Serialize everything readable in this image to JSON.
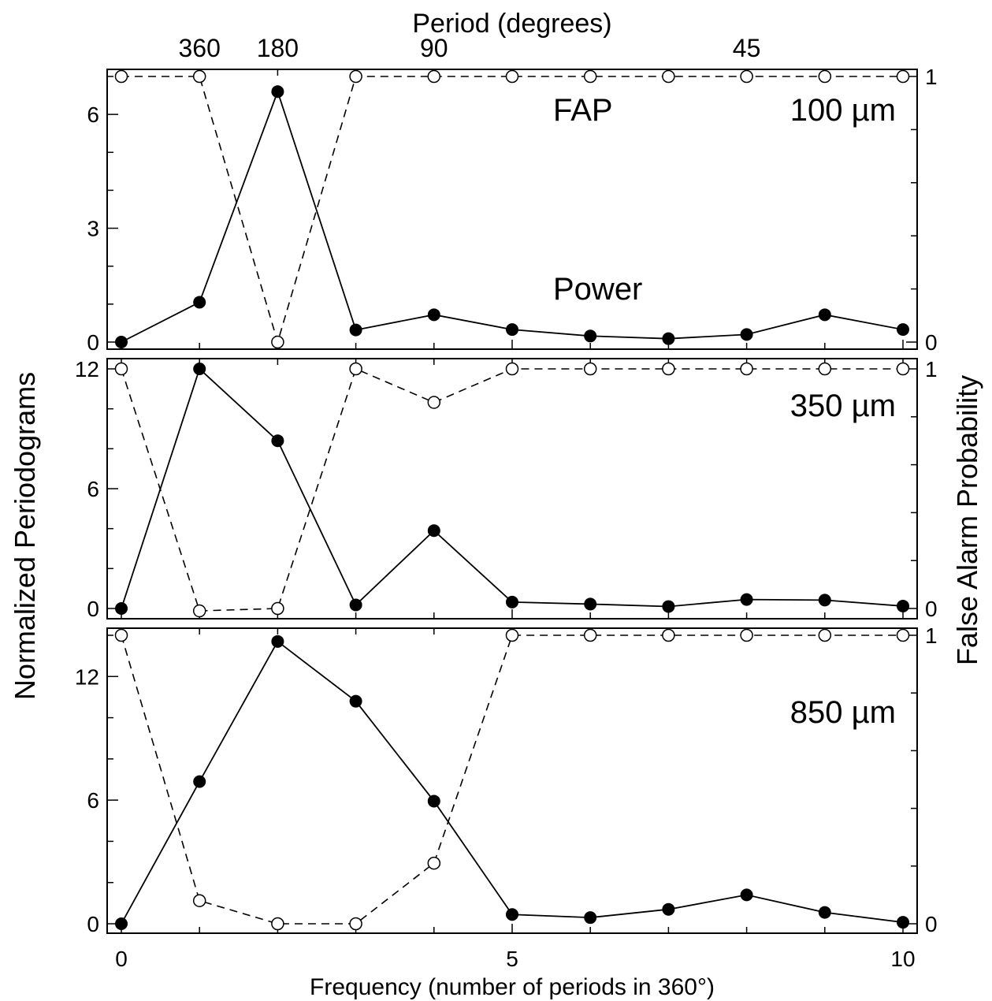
{
  "chart_data": {
    "type": "line",
    "xlabel": "Frequency (number of periods in 360°)",
    "x2label": "Period (degrees)",
    "ylabel": "Normalized Periodograms",
    "y2label": "False Alarm Probability",
    "xlim": [
      0,
      10
    ],
    "xticks": [
      "0",
      "5",
      "10"
    ],
    "top_axis_ticks": [
      {
        "x": 1,
        "label": "360"
      },
      {
        "x": 2,
        "label": "180"
      },
      {
        "x": 4,
        "label": "90"
      },
      {
        "x": 8,
        "label": "45"
      }
    ],
    "annotations": {
      "fap": "FAP",
      "power": "Power"
    },
    "x": [
      0,
      1,
      2,
      3,
      4,
      5,
      6,
      7,
      8,
      9,
      10
    ],
    "panels": [
      {
        "label": "100 µm",
        "ylim": [
          0,
          7
        ],
        "yticks": [
          "0",
          "3",
          "6"
        ],
        "ytick_values": [
          0,
          3,
          6
        ],
        "y2lim": [
          0,
          1
        ],
        "y2ticks": [
          "0",
          "1"
        ],
        "power": [
          0,
          1.05,
          6.6,
          0.32,
          0.72,
          0.33,
          0.16,
          0.09,
          0.2,
          0.72,
          0.33
        ],
        "fap": [
          1,
          1,
          0.0,
          1,
          1,
          1,
          1,
          1,
          1,
          1,
          1
        ]
      },
      {
        "label": "350 µm",
        "ylim": [
          0,
          12
        ],
        "yticks": [
          "0",
          "6",
          "12"
        ],
        "ytick_values": [
          0,
          6,
          12
        ],
        "y2lim": [
          0,
          1
        ],
        "y2ticks": [
          "0",
          "1"
        ],
        "power": [
          0,
          12.0,
          8.4,
          0.18,
          3.9,
          0.32,
          0.22,
          0.1,
          0.45,
          0.42,
          0.12
        ],
        "fap": [
          1,
          -0.01,
          0.0,
          1,
          0.86,
          1,
          1,
          1,
          1,
          1,
          1
        ]
      },
      {
        "label": "850 µm",
        "ylim": [
          0,
          14
        ],
        "yticks": [
          "0",
          "6",
          "12"
        ],
        "ytick_values": [
          0,
          6,
          12
        ],
        "y2lim": [
          0,
          1
        ],
        "y2ticks": [
          "0",
          "1"
        ],
        "power": [
          0,
          6.9,
          13.7,
          10.8,
          5.95,
          0.45,
          0.3,
          0.7,
          1.4,
          0.55,
          0.07
        ],
        "fap": [
          1,
          0.08,
          0.0,
          0.0,
          0.21,
          1,
          1,
          1,
          1,
          1,
          1
        ]
      }
    ]
  }
}
